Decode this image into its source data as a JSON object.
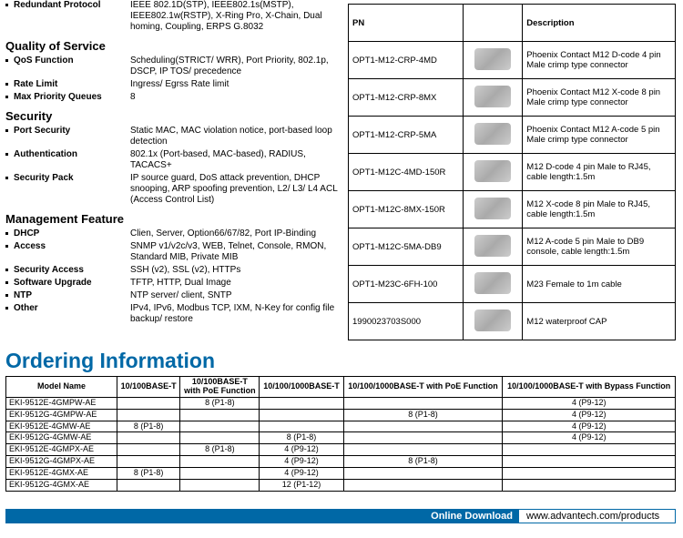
{
  "specs": {
    "top": [
      {
        "label": "Redundant Protocol",
        "value": "IEEE 802.1D(STP), IEEE802.1s(MSTP), IEEE802.1w(RSTP), X-Ring Pro, X-Chain, Dual homing, Coupling, ERPS G.8032"
      }
    ],
    "sections": [
      {
        "title": "Quality of Service",
        "rows": [
          {
            "label": "QoS Function",
            "value": "Scheduling(STRICT/ WRR), Port Priority, 802.1p, DSCP, IP TOS/ precedence"
          },
          {
            "label": "Rate Limit",
            "value": "Ingress/ Egrss Rate limit"
          },
          {
            "label": "Max Priority Queues",
            "value": "8"
          }
        ]
      },
      {
        "title": "Security",
        "rows": [
          {
            "label": "Port Security",
            "value": "Static MAC, MAC violation notice, port-based loop detection"
          },
          {
            "label": "Authentication",
            "value": "802.1x (Port-based, MAC-based), RADIUS, TACACS+"
          },
          {
            "label": "Security Pack",
            "value": "IP source guard, DoS attack prevention, DHCP snooping, ARP spoofing prevention, L2/ L3/ L4 ACL (Access Control List)"
          }
        ]
      },
      {
        "title": "Management Feature",
        "rows": [
          {
            "label": "DHCP",
            "value": "Clien, Server, Option66/67/82, Port IP-Binding"
          },
          {
            "label": "Access",
            "value": "SNMP v1/v2c/v3, WEB, Telnet, Console, RMON, Standard MIB, Private MIB"
          },
          {
            "label": "Security Access",
            "value": "SSH (v2), SSL (v2), HTTPs"
          },
          {
            "label": "Software Upgrade",
            "value": "TFTP, HTTP, Dual Image"
          },
          {
            "label": "NTP",
            "value": "NTP server/ client, SNTP"
          },
          {
            "label": "Other",
            "value": "IPv4, IPv6, Modbus TCP, IXM, N-Key for config file backup/ restore"
          }
        ]
      }
    ]
  },
  "ordering_title": "Ordering Information",
  "pn_table": {
    "headers": [
      "PN",
      "Description"
    ],
    "rows": [
      {
        "pn": "OPT1-M12-CRP-4MD",
        "desc": "Phoenix Contact M12 D-code 4 pin Male crimp type connector"
      },
      {
        "pn": "OPT1-M12-CRP-8MX",
        "desc": "Phoenix Contact M12 X-code 8 pin Male crimp type connector"
      },
      {
        "pn": "OPT1-M12-CRP-5MA",
        "desc": "Phoenix Contact M12 A-code 5 pin Male crimp type connector"
      },
      {
        "pn": "OPT1-M12C-4MD-150R",
        "desc": "M12 D-code 4 pin Male to RJ45, cable length:1.5m"
      },
      {
        "pn": "OPT1-M12C-8MX-150R",
        "desc": "M12 X-code 8 pin Male to RJ45, cable length:1.5m"
      },
      {
        "pn": "OPT1-M12C-5MA-DB9",
        "desc": "M12 A-code 5 pin Male to DB9 console, cable length:1.5m"
      },
      {
        "pn": "OPT1-M23C-6FH-100",
        "desc": "M23 Female to 1m cable"
      },
      {
        "pn": "1990023703S000",
        "desc": "M12 waterproof CAP"
      }
    ]
  },
  "order_table": {
    "headers": [
      "Model Name",
      "10/100BASE-T",
      "10/100BASE-T\nwith PoE Function",
      "10/100/1000BASE-T",
      "10/100/1000BASE-T with PoE Function",
      "10/100/1000BASE-T with Bypass Function"
    ],
    "rows": [
      {
        "mn": "EKI-9512E-4GMPW-AE",
        "c1": "",
        "c2": "8 (P1-8)",
        "c3": "",
        "c4": "",
        "c5": "4 (P9-12)"
      },
      {
        "mn": "EKI-9512G-4GMPW-AE",
        "c1": "",
        "c2": "",
        "c3": "",
        "c4": "8 (P1-8)",
        "c5": "4 (P9-12)"
      },
      {
        "mn": "EKI-9512E-4GMW-AE",
        "c1": "8 (P1-8)",
        "c2": "",
        "c3": "",
        "c4": "",
        "c5": "4 (P9-12)"
      },
      {
        "mn": "EKI-9512G-4GMW-AE",
        "c1": "",
        "c2": "",
        "c3": "8 (P1-8)",
        "c4": "",
        "c5": "4 (P9-12)"
      },
      {
        "mn": "EKI-9512E-4GMPX-AE",
        "c1": "",
        "c2": "8 (P1-8)",
        "c3": "4 (P9-12)",
        "c4": "",
        "c5": ""
      },
      {
        "mn": "EKI-9512G-4GMPX-AE",
        "c1": "",
        "c2": "",
        "c3": "4 (P9-12)",
        "c4": "8 (P1-8)",
        "c5": ""
      },
      {
        "mn": "EKI-9512E-4GMX-AE",
        "c1": "8 (P1-8)",
        "c2": "",
        "c3": "4 (P9-12)",
        "c4": "",
        "c5": ""
      },
      {
        "mn": "EKI-9512G-4GMX-AE",
        "c1": "",
        "c2": "",
        "c3": "12 (P1-12)",
        "c4": "",
        "c5": ""
      }
    ]
  },
  "download": {
    "label": "Online Download",
    "url": "www.advantech.com/products"
  }
}
